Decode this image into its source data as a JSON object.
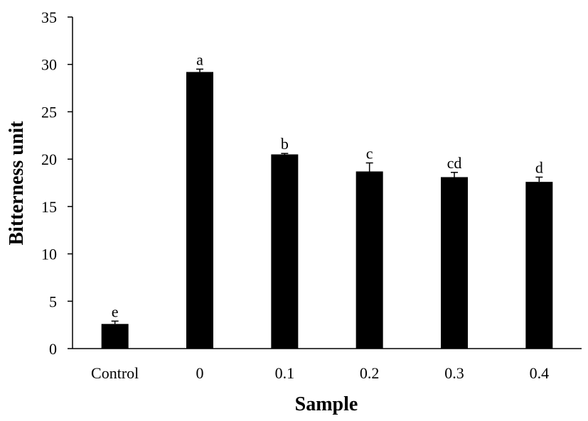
{
  "chart_data": {
    "type": "bar",
    "xlabel": "Sample",
    "ylabel": "Bitterness unit",
    "categories": [
      "Control",
      "0",
      "0.1",
      "0.2",
      "0.3",
      "0.4"
    ],
    "values": [
      2.6,
      29.2,
      20.5,
      18.7,
      18.1,
      17.6
    ],
    "errors": [
      0.3,
      0.3,
      0.1,
      0.9,
      0.5,
      0.5
    ],
    "significance_labels": [
      "e",
      "a",
      "b",
      "c",
      "cd",
      "d"
    ],
    "ylim": [
      0,
      35
    ],
    "yticks": [
      0,
      5,
      10,
      15,
      20,
      25,
      30,
      35
    ],
    "grid": false,
    "legend": "none",
    "bar_color": "#000000"
  }
}
